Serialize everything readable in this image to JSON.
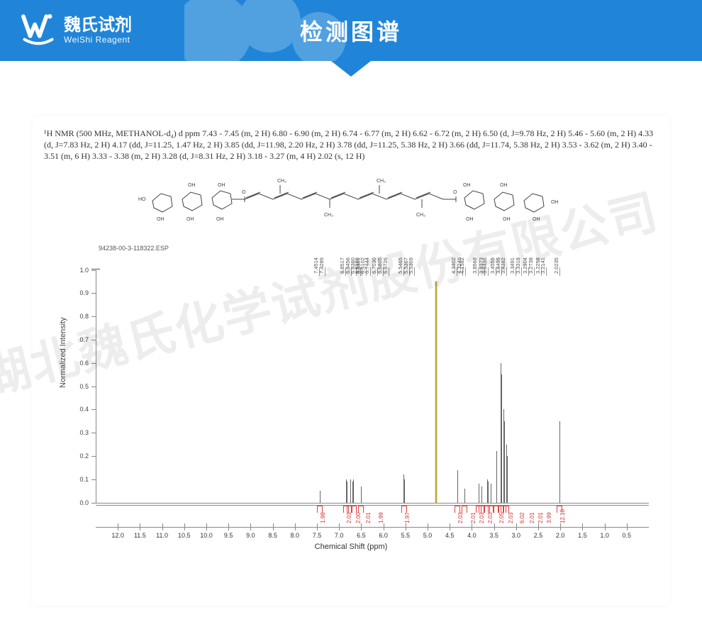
{
  "header": {
    "logo_cn": "魏氏试剂",
    "logo_en": "WeiShi Reagent",
    "title": "检测图谱"
  },
  "watermark": "湖北魏氏化学试剂股份有限公司",
  "description": {
    "text": "¹H NMR (500 MHz, METHANOL-d₄) d ppm 7.43 - 7.45 (m, 2 H) 6.80 - 6.90 (m, 2 H) 6.74 - 6.77 (m, 2 H) 6.62 - 6.72 (m, 2 H) 6.50 (d, J=9.78 Hz, 2 H) 5.46 - 5.60 (m, 2 H) 4.33 (d, J=7.83 Hz, 2 H) 4.17 (dd, J=11.25, 1.47 Hz, 2 H) 3.85 (dd, J=11.98, 2.20 Hz, 2 H) 3.78 (dd, J=11.25, 5.38 Hz, 2 H) 3.66 (dd, J=11.74, 5.38 Hz, 2 H) 3.53 - 3.62 (m, 2 H) 3.40 - 3.51 (m, 6 H) 3.33 - 3.38 (m, 2 H) 3.28 (d, J=8.31 Hz, 2 H) 3.18 - 3.27 (m, 4 H) 2.02 (s, 12 H)"
  },
  "chart": {
    "sample": "94238-00-3-118322.ESP",
    "y_label": "Normalized Intensity",
    "x_label": "Chemical Shift (ppm)",
    "x_range": [
      12.5,
      0.0
    ],
    "x_ticks": [
      12.0,
      11.5,
      11.0,
      10.5,
      10.0,
      9.5,
      9.0,
      8.5,
      8.0,
      7.5,
      7.0,
      6.5,
      6.0,
      5.5,
      5.0,
      4.5,
      4.0,
      3.5,
      3.0,
      2.5,
      2.0,
      1.5,
      1.0,
      0.5
    ],
    "y_ticks": [
      0,
      0.1,
      0.2,
      0.3,
      0.4,
      0.5,
      0.6,
      0.7,
      0.8,
      0.9,
      1.0
    ],
    "top_labels": [
      {
        "ppm": 7.4514,
        "text": "7.4514"
      },
      {
        "ppm": 7.4289,
        "text": "7.4289"
      },
      {
        "ppm": 6.8517,
        "text": "6.8517"
      },
      {
        "ppm": 6.8456,
        "text": "6.8456"
      },
      {
        "ppm": 6.836,
        "text": "6.8360"
      },
      {
        "ppm": 6.8301,
        "text": "6.8301"
      },
      {
        "ppm": 6.7444,
        "text": "6.7444"
      },
      {
        "ppm": 6.703,
        "text": "6.7030"
      },
      {
        "ppm": 6.6805,
        "text": "6.6805"
      },
      {
        "ppm": 6.6726,
        "text": "6.6726"
      },
      {
        "ppm": 6.5199,
        "text": "6.5199"
      },
      {
        "ppm": 6.5102,
        "text": "6.5102"
      },
      {
        "ppm": 5.5465,
        "text": "5.5465"
      },
      {
        "ppm": 5.5367,
        "text": "5.5367"
      },
      {
        "ppm": 5.5309,
        "text": "5.5309"
      },
      {
        "ppm": 4.3402,
        "text": "4.3402"
      },
      {
        "ppm": 4.3246,
        "text": "4.3246"
      },
      {
        "ppm": 4.1582,
        "text": "4.1582"
      },
      {
        "ppm": 3.8568,
        "text": "3.8568"
      },
      {
        "ppm": 3.8373,
        "text": "3.8373"
      },
      {
        "ppm": 3.6436,
        "text": "3.6436"
      },
      {
        "ppm": 3.4559,
        "text": "3.4559"
      },
      {
        "ppm": 3.4499,
        "text": "3.4499"
      },
      {
        "ppm": 3.4382,
        "text": "3.4382"
      },
      {
        "ppm": 3.3491,
        "text": "3.3491"
      },
      {
        "ppm": 3.3318,
        "text": "3.3318"
      },
      {
        "ppm": 3.2904,
        "text": "3.2904"
      },
      {
        "ppm": 3.2738,
        "text": "3.2738"
      },
      {
        "ppm": 3.2258,
        "text": "3.2258"
      },
      {
        "ppm": 3.2141,
        "text": "3.2141"
      },
      {
        "ppm": 2.0235,
        "text": "2.0235"
      }
    ],
    "peaks": [
      {
        "ppm": 7.44,
        "h": 0.05
      },
      {
        "ppm": 6.85,
        "h": 0.1
      },
      {
        "ppm": 6.83,
        "h": 0.09
      },
      {
        "ppm": 6.75,
        "h": 0.1
      },
      {
        "ppm": 6.7,
        "h": 0.09
      },
      {
        "ppm": 6.68,
        "h": 0.1
      },
      {
        "ppm": 6.51,
        "h": 0.07
      },
      {
        "ppm": 5.55,
        "h": 0.12
      },
      {
        "ppm": 5.53,
        "h": 0.1
      },
      {
        "ppm": 4.82,
        "h": 0.95,
        "solvent": true
      },
      {
        "ppm": 4.33,
        "h": 0.14
      },
      {
        "ppm": 4.32,
        "h": 0.1
      },
      {
        "ppm": 4.17,
        "h": 0.06
      },
      {
        "ppm": 3.85,
        "h": 0.08
      },
      {
        "ppm": 3.78,
        "h": 0.07
      },
      {
        "ppm": 3.66,
        "h": 0.1
      },
      {
        "ppm": 3.64,
        "h": 0.09
      },
      {
        "ppm": 3.58,
        "h": 0.08
      },
      {
        "ppm": 3.45,
        "h": 0.22
      },
      {
        "ppm": 3.44,
        "h": 0.2
      },
      {
        "ppm": 3.35,
        "h": 0.6
      },
      {
        "ppm": 3.33,
        "h": 0.55
      },
      {
        "ppm": 3.29,
        "h": 0.4
      },
      {
        "ppm": 3.27,
        "h": 0.35
      },
      {
        "ppm": 3.22,
        "h": 0.25
      },
      {
        "ppm": 3.21,
        "h": 0.2
      },
      {
        "ppm": 2.02,
        "h": 0.35
      }
    ],
    "integrals": [
      {
        "ppm": 7.44,
        "label": "1.98"
      },
      {
        "ppm": 6.85,
        "label": "2.03"
      },
      {
        "ppm": 6.76,
        "label": "2.00"
      },
      {
        "ppm": 6.67,
        "label": "2.01"
      },
      {
        "ppm": 6.51,
        "label": "1.99"
      },
      {
        "ppm": 5.53,
        "label": "1.97"
      },
      {
        "ppm": 4.33,
        "label": "2.03"
      },
      {
        "ppm": 4.17,
        "label": "2.01"
      },
      {
        "ppm": 3.85,
        "label": "2.03"
      },
      {
        "ppm": 3.78,
        "label": "2.03"
      },
      {
        "ppm": 3.66,
        "label": "2.05"
      },
      {
        "ppm": 3.57,
        "label": "2.03"
      },
      {
        "ppm": 3.45,
        "label": "6.02"
      },
      {
        "ppm": 3.35,
        "label": "2.01"
      },
      {
        "ppm": 3.29,
        "label": "2.01"
      },
      {
        "ppm": 3.22,
        "label": "3.99"
      },
      {
        "ppm": 2.02,
        "label": "12.10"
      }
    ]
  }
}
